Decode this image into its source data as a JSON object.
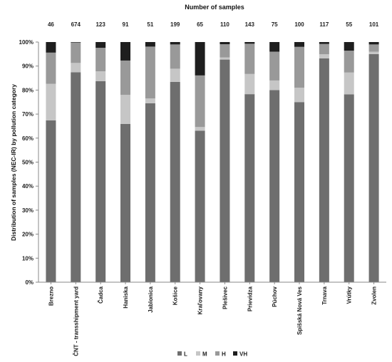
{
  "chart_data": {
    "type": "bar",
    "stacked": true,
    "top_label": "Number of samples",
    "ylabel": "Distribution of samples (NEC-IR)  by pollution category",
    "xlabel": "",
    "ylim": [
      0,
      100
    ],
    "y_ticks": [
      "0%",
      "10%",
      "20%",
      "30%",
      "40%",
      "50%",
      "60%",
      "70%",
      "80%",
      "90%",
      "100%"
    ],
    "grid": false,
    "legend_position": "bottom",
    "categories": [
      "Brezno",
      "ČNT - transshipment yard",
      "Čadca",
      "Haniska",
      "Jablonica",
      "Košice",
      "Kraľovany",
      "Plešivec",
      "Prievidza",
      "Púchov",
      "Spišská Nová Ves",
      "Trnava",
      "Vrútky",
      "Zvolen"
    ],
    "sample_counts": [
      "46",
      "674",
      "123",
      "91",
      "51",
      "199",
      "65",
      "110",
      "143",
      "75",
      "100",
      "117",
      "55",
      "101"
    ],
    "series": [
      {
        "name": "L",
        "color": "#6e6e6e",
        "values": [
          67.4,
          87.4,
          83.7,
          65.9,
          74.5,
          83.4,
          63.1,
          92.7,
          78.3,
          80.0,
          75.0,
          93.2,
          78.2,
          95.0
        ]
      },
      {
        "name": "M",
        "color": "#c6c6c6",
        "values": [
          15.2,
          3.9,
          4.1,
          12.1,
          2.0,
          5.5,
          1.5,
          0.9,
          8.4,
          4.0,
          6.0,
          1.7,
          9.1,
          1.0
        ]
      },
      {
        "name": "H",
        "color": "#999999",
        "values": [
          13.0,
          8.5,
          9.8,
          14.3,
          21.6,
          10.1,
          21.5,
          5.5,
          12.6,
          12.0,
          17.0,
          4.3,
          9.1,
          3.0
        ]
      },
      {
        "name": "VH",
        "color": "#1e1e1e",
        "values": [
          4.4,
          0.2,
          2.4,
          7.7,
          1.9,
          1.0,
          13.9,
          0.9,
          0.7,
          4.0,
          2.0,
          0.8,
          3.6,
          1.0
        ]
      }
    ]
  }
}
